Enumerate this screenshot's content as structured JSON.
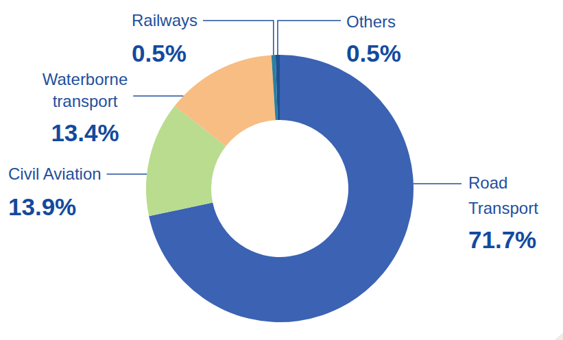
{
  "chart_data": {
    "type": "donut",
    "categories": [
      "Road Transport",
      "Civil Aviation",
      "Waterborne transport",
      "Railways",
      "Others"
    ],
    "values": [
      71.7,
      13.9,
      13.4,
      0.5,
      0.5
    ],
    "value_labels": [
      "71.7%",
      "13.9%",
      "13.4%",
      "0.5%",
      "0.5%"
    ],
    "colors": [
      "#3b62b3",
      "#b9dc8f",
      "#f7bd83",
      "#2c7f9e",
      "#1d4f92"
    ],
    "data_labels": true
  }
}
